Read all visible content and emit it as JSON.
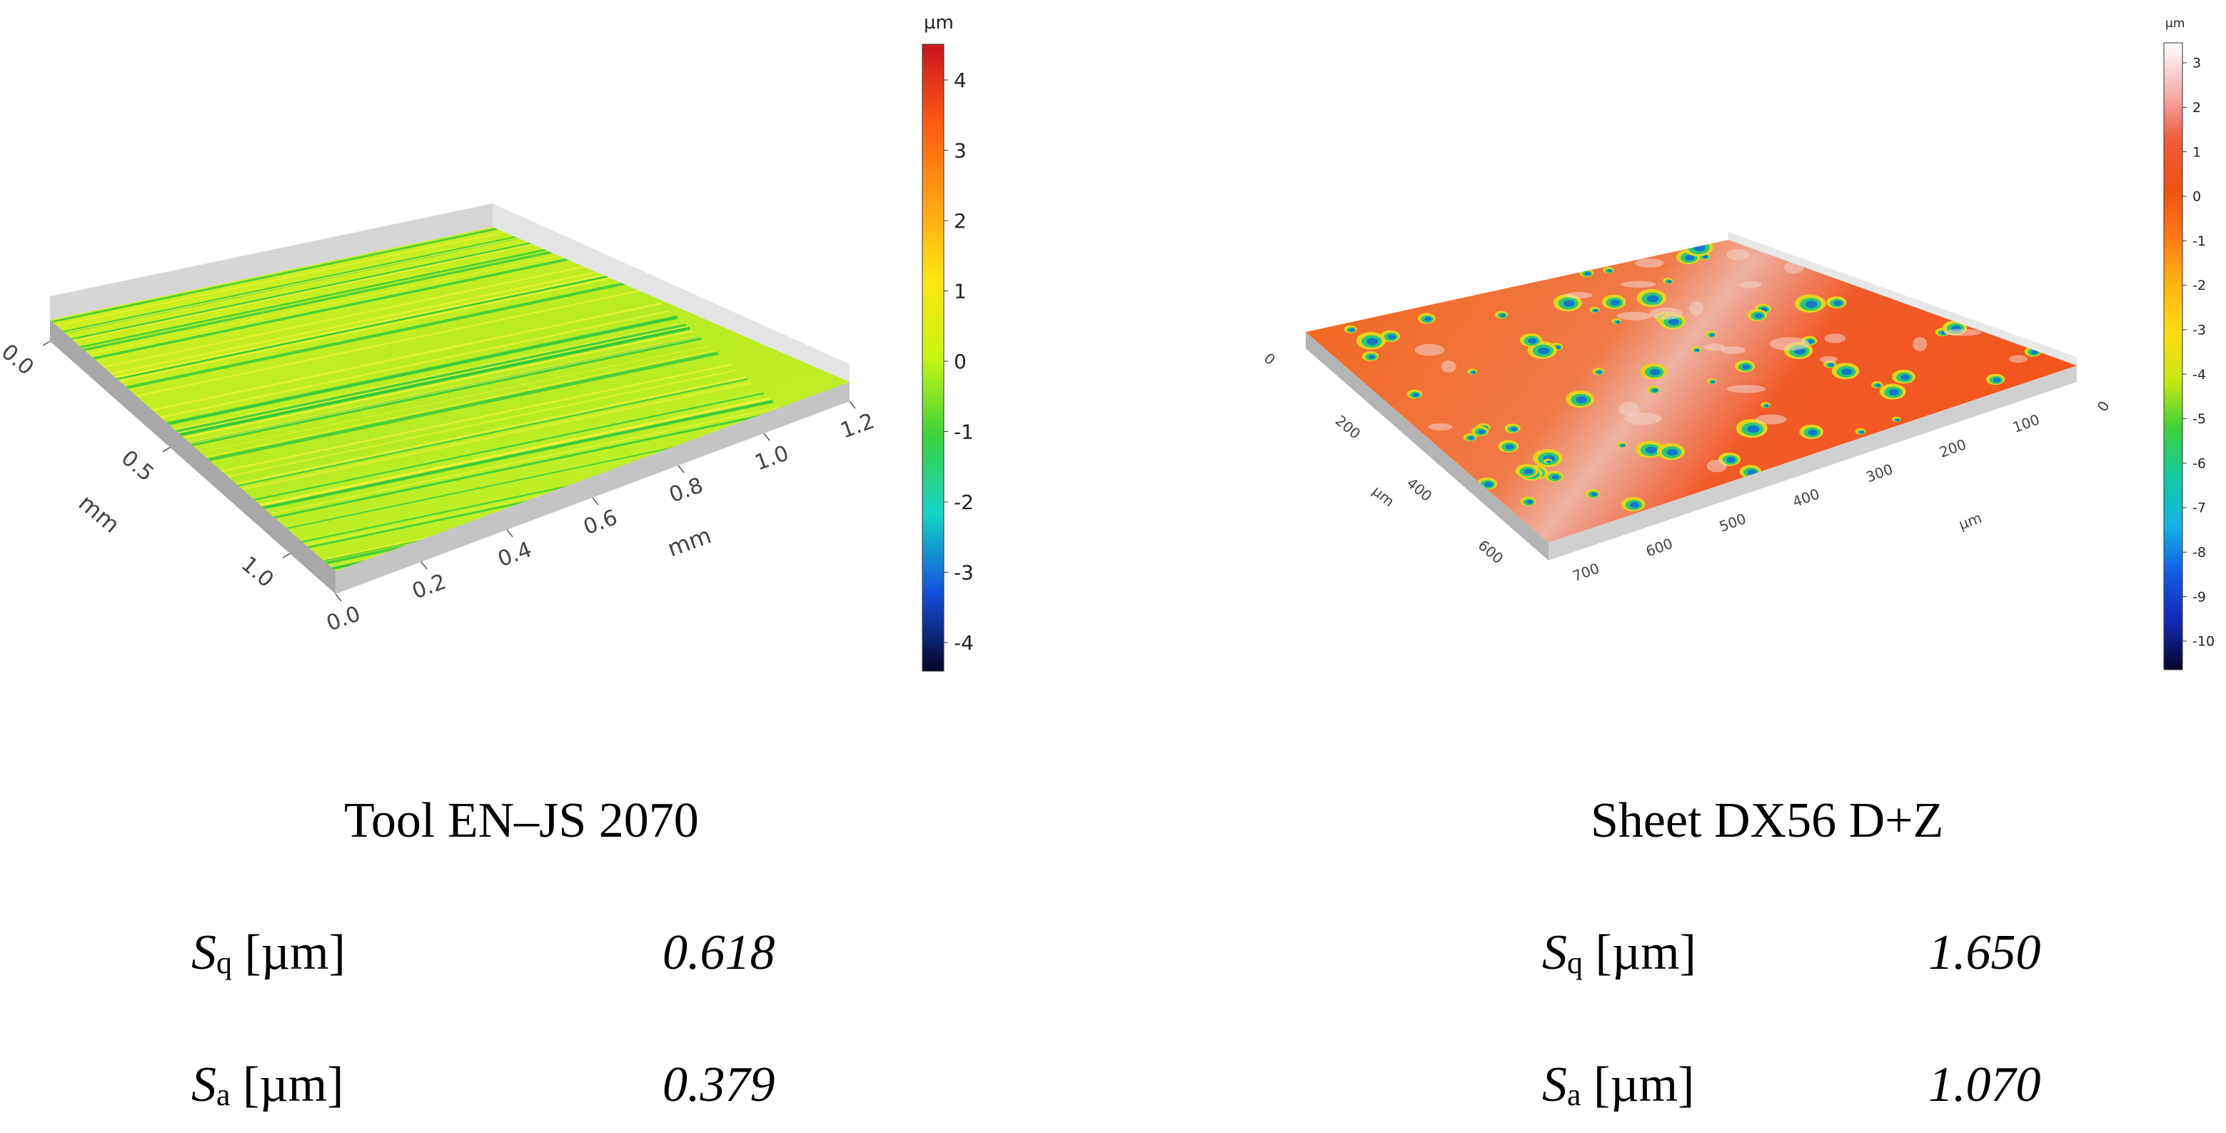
{
  "left": {
    "title": "Tool EN–JS 2070",
    "colorbar": {
      "unit": "µm",
      "ticks": [
        "4",
        "3",
        "2",
        "1",
        "0",
        "-1",
        "-2",
        "-3",
        "-4"
      ],
      "colors": [
        "#c8141e",
        "#ff5a14",
        "#ffa014",
        "#ffe614",
        "#c8f514",
        "#3cd23c",
        "#14d2c8",
        "#1450dc",
        "#050528"
      ]
    },
    "axis_x": {
      "label": "mm",
      "ticks": [
        "0.0",
        "0.2",
        "0.4",
        "0.6",
        "0.8",
        "1.0",
        "1.2"
      ]
    },
    "axis_y": {
      "label": "mm",
      "ticks": [
        "0.0",
        "0.5",
        "1.0"
      ]
    },
    "metrics": [
      {
        "symbol": "S",
        "sub": "q",
        "unit": "[µm]",
        "value": "0.618"
      },
      {
        "symbol": "S",
        "sub": "a",
        "unit": "[µm]",
        "value": "0.379"
      }
    ]
  },
  "right": {
    "title": "Sheet DX56 D+Z",
    "colorbar": {
      "unit": "µm",
      "ticks": [
        "3",
        "2",
        "1",
        "0",
        "-1",
        "-2",
        "-3",
        "-4",
        "-5",
        "-6",
        "-7",
        "-8",
        "-9",
        "-10"
      ],
      "colors": [
        "#ffffff",
        "#f5b4b4",
        "#f05a3c",
        "#f05014",
        "#ff7814",
        "#ffb414",
        "#ffdc14",
        "#c8e614",
        "#3cd23c",
        "#14c8a0",
        "#14b4e6",
        "#145ae6",
        "#1428b4",
        "#050528"
      ]
    },
    "axis_front": {
      "label": "µm",
      "ticks": [
        "0",
        "200",
        "400",
        "600"
      ]
    },
    "axis_right_left": {
      "ticks": [
        "700",
        "600",
        "500",
        "400",
        "300",
        "200",
        "100"
      ]
    },
    "axis_right_label": "µm",
    "axis_right_end": "0",
    "metrics": [
      {
        "symbol": "S",
        "sub": "q",
        "unit": "[µm]",
        "value": "1.650"
      },
      {
        "symbol": "S",
        "sub": "a",
        "unit": "[µm]",
        "value": "1.070"
      }
    ]
  }
}
